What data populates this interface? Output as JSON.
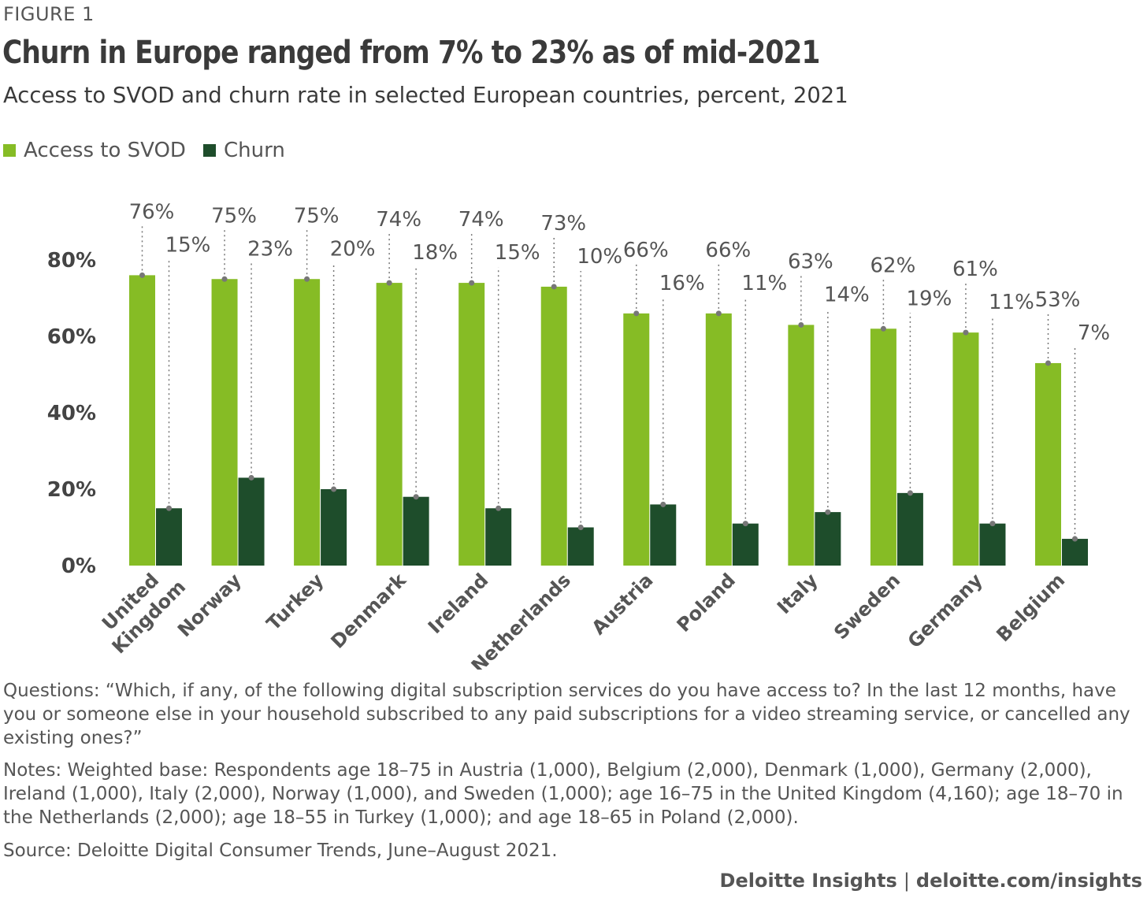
{
  "figure_label": "FIGURE 1",
  "title": "Churn in Europe ranged from 7% to 23% as of mid-2021",
  "subtitle": "Access to SVOD and churn rate in selected European countries, percent, 2021",
  "colors": {
    "access": "#86bc25",
    "churn": "#1e4d2b",
    "axis_text": "#555555",
    "dots": "#777777"
  },
  "chart_data": {
    "type": "bar",
    "categories": [
      "United Kingdom",
      "Norway",
      "Turkey",
      "Denmark",
      "Ireland",
      "Netherlands",
      "Austria",
      "Poland",
      "Italy",
      "Sweden",
      "Germany",
      "Belgium"
    ],
    "series": [
      {
        "name": "Access to SVOD",
        "values": [
          76,
          75,
          75,
          74,
          74,
          73,
          66,
          66,
          63,
          62,
          61,
          53
        ]
      },
      {
        "name": "Churn",
        "values": [
          15,
          23,
          20,
          18,
          15,
          10,
          16,
          11,
          14,
          19,
          11,
          7
        ]
      }
    ],
    "ylim": [
      0,
      80
    ],
    "yticks": [
      "0%",
      "20%",
      "40%",
      "60%",
      "80%"
    ],
    "value_suffix": "%",
    "legend": "top-left",
    "grid": false
  },
  "notes": {
    "questions": "Questions: “Which, if any, of the following digital subscription services do you have access to? In the last 12 months, have you or someone else in your household subscribed to any paid subscriptions for a video streaming service, or cancelled any existing ones?”",
    "notes": "Notes: Weighted base: Respondents age 18–75 in Austria (1,000), Belgium (2,000), Denmark (1,000), Germany (2,000), Ireland (1,000), Italy (2,000), Norway (1,000), and Sweden (1,000); age 16–75 in the United Kingdom (4,160); age 18–70 in the Netherlands (2,000); age 18–55 in Turkey (1,000); and age 18–65 in Poland (2,000).",
    "source": "Source: Deloitte Digital Consumer Trends, June–August 2021."
  },
  "footer": {
    "brand": "Deloitte Insights",
    "site": "deloitte.com/insights"
  }
}
